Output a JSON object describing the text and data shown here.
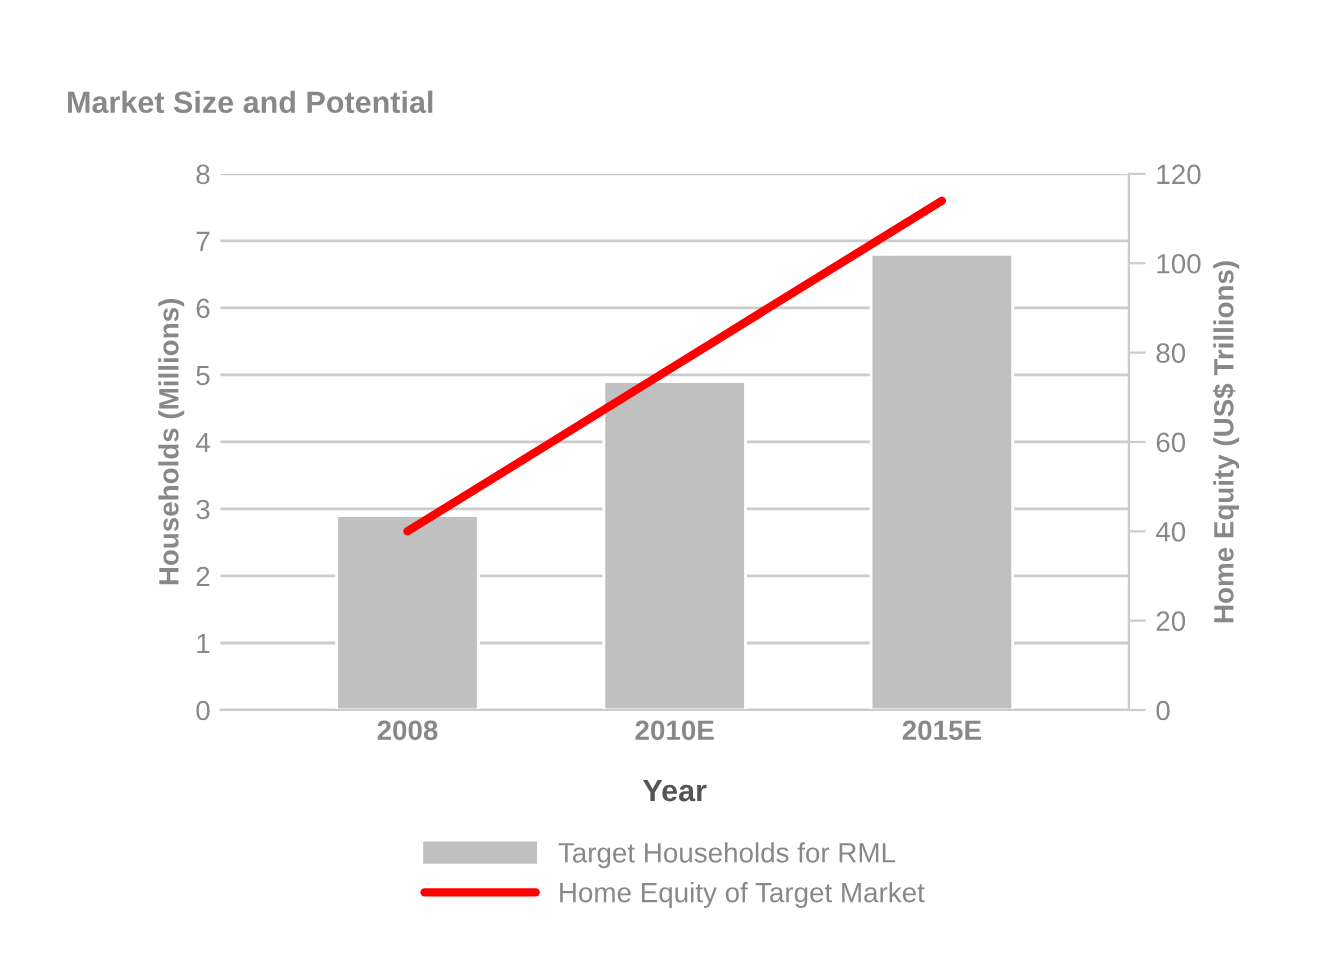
{
  "chart_data": {
    "type": "bar",
    "title": "Market Size and Potential",
    "xlabel": "Year",
    "ylabel": "Households (Millions)",
    "y2label": "Home Equity (US$ Trillions)",
    "categories": [
      "2008",
      "2010E",
      "2015E"
    ],
    "series": [
      {
        "name": "Target Households for RML",
        "color": "#c0c0c0",
        "values": [
          2.9,
          4.9,
          6.8
        ]
      },
      {
        "name": "Home Equity of Target Market",
        "type": "line",
        "axis": "y2",
        "color": "#ff0000",
        "values": [
          40,
          77,
          114
        ]
      }
    ],
    "ylim": [
      0,
      8
    ],
    "yticks": [
      0,
      1,
      2,
      3,
      4,
      5,
      6,
      7,
      8
    ],
    "y2lim": [
      0,
      120
    ],
    "y2ticks": [
      0,
      20,
      40,
      60,
      80,
      100,
      120
    ],
    "grid": "y",
    "legend": "bottom"
  }
}
